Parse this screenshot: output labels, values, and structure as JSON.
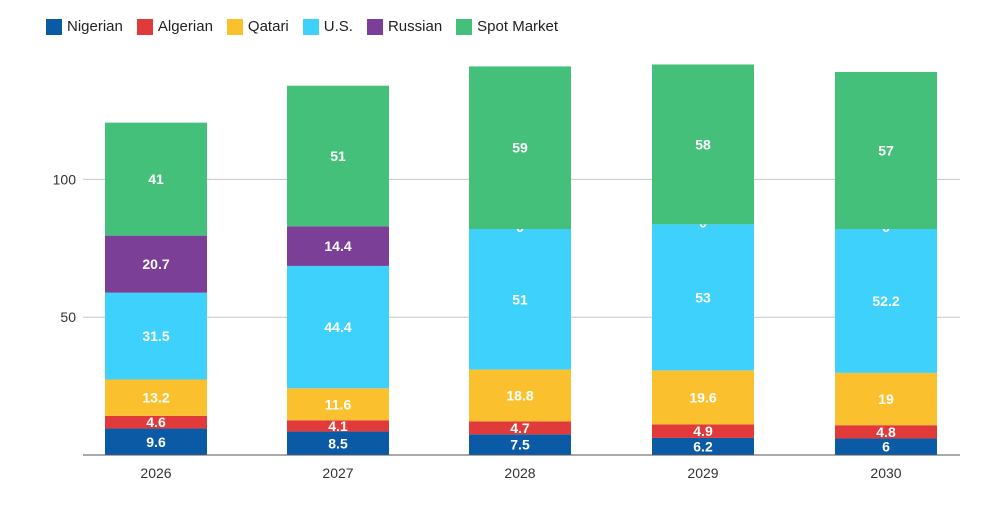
{
  "chart_data": {
    "type": "bar",
    "stacked": true,
    "categories": [
      "2026",
      "2027",
      "2028",
      "2029",
      "2030"
    ],
    "series": [
      {
        "name": "Nigerian",
        "color": "#0a5aa5",
        "values": [
          9.6,
          8.5,
          7.5,
          6.2,
          6
        ]
      },
      {
        "name": "Algerian",
        "color": "#e03a3a",
        "values": [
          4.6,
          4.1,
          4.7,
          4.9,
          4.8
        ]
      },
      {
        "name": "Qatari",
        "color": "#fbc02d",
        "values": [
          13.2,
          11.6,
          18.8,
          19.6,
          19
        ]
      },
      {
        "name": "U.S.",
        "color": "#3dd1fb",
        "values": [
          31.5,
          44.4,
          51,
          53,
          52.2
        ]
      },
      {
        "name": "Russian",
        "color": "#7c3f98",
        "values": [
          20.7,
          14.4,
          0,
          0,
          0
        ]
      },
      {
        "name": "Spot Market",
        "color": "#45c07a",
        "values": [
          41,
          51,
          59,
          58,
          57
        ]
      }
    ],
    "y_ticks": [
      50,
      100
    ],
    "ylim": [
      0,
      145
    ],
    "grid": true,
    "legend_position": "top-left"
  }
}
